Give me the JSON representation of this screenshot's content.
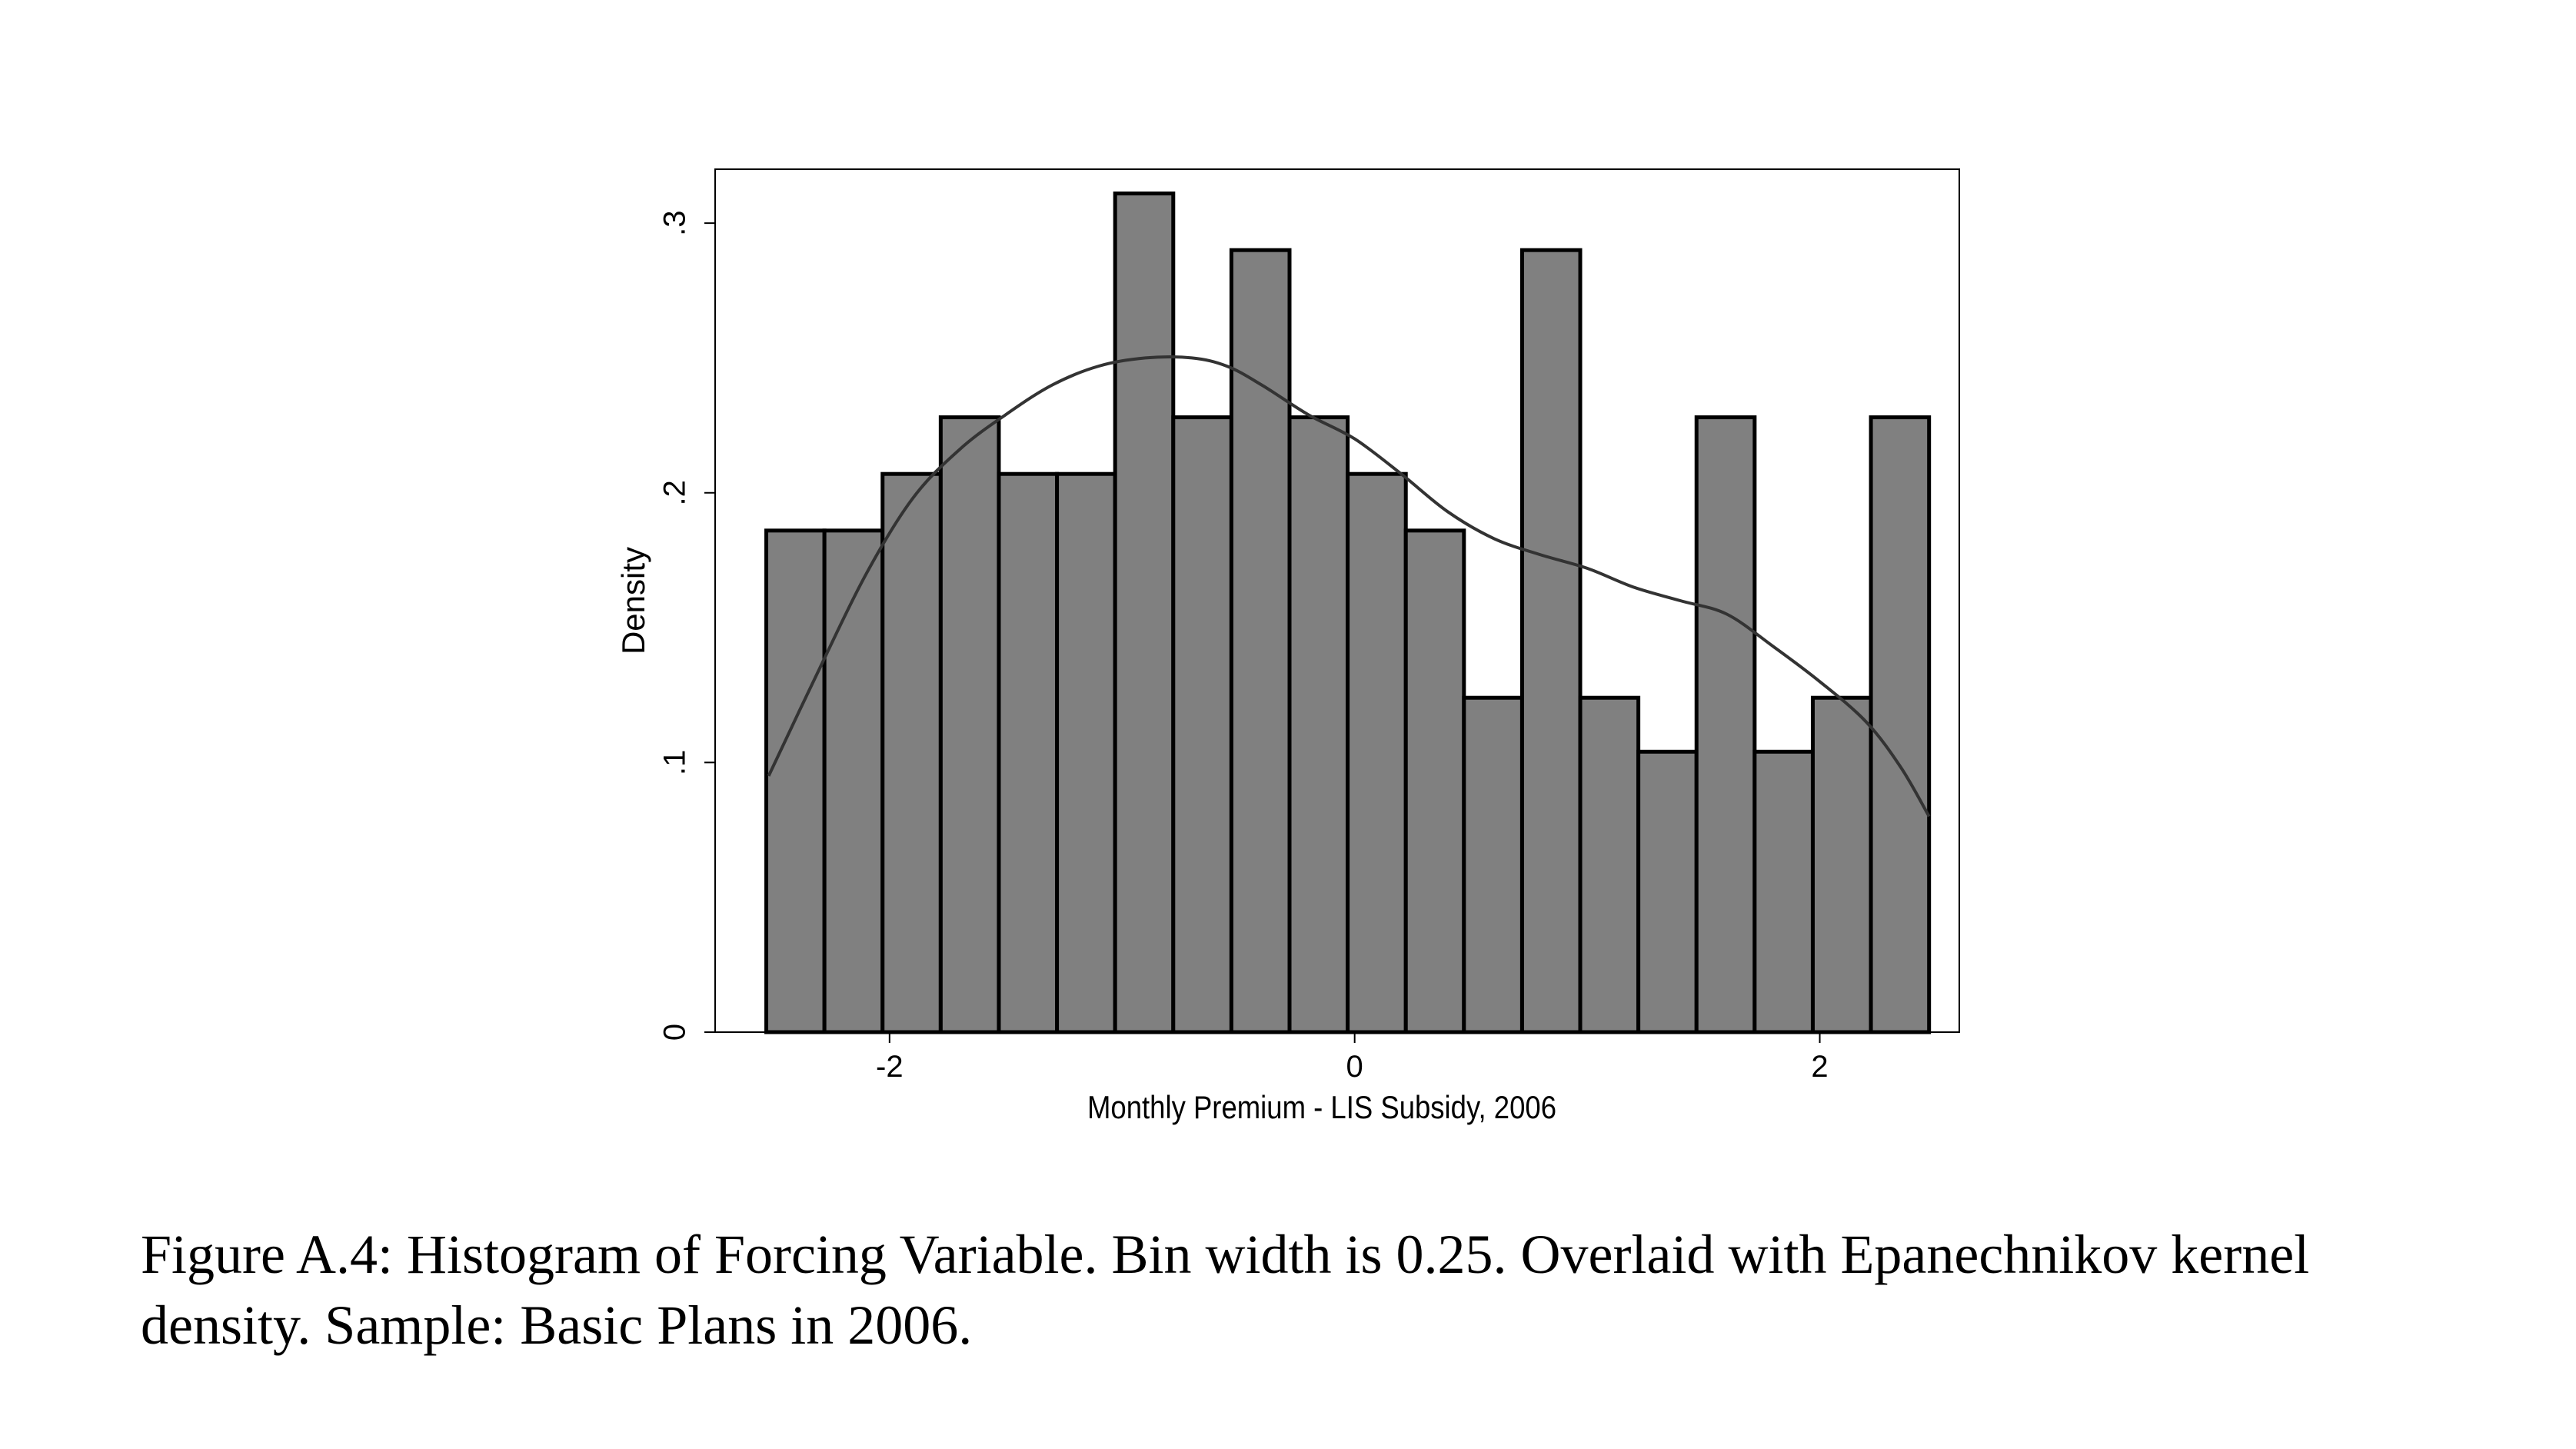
{
  "chart_data": {
    "type": "bar",
    "xlabel": "Monthly Premium - LIS Subsidy, 2006",
    "ylabel": "Density",
    "xlim": [
      -2.75,
      2.6
    ],
    "ylim": [
      0,
      0.32
    ],
    "x_ticks": [
      {
        "value": -2,
        "label": "-2"
      },
      {
        "value": 0,
        "label": "0"
      },
      {
        "value": 2,
        "label": "2"
      }
    ],
    "y_ticks": [
      {
        "value": 0,
        "label": "0"
      },
      {
        "value": 0.1,
        "label": ".1"
      },
      {
        "value": 0.2,
        "label": ".2"
      },
      {
        "value": 0.3,
        "label": ".3"
      }
    ],
    "bin_width": 0.25,
    "bins": [
      {
        "start": -2.53,
        "density": 0.186
      },
      {
        "start": -2.28,
        "density": 0.186
      },
      {
        "start": -2.03,
        "density": 0.207
      },
      {
        "start": -1.78,
        "density": 0.228
      },
      {
        "start": -1.53,
        "density": 0.207
      },
      {
        "start": -1.28,
        "density": 0.207
      },
      {
        "start": -1.03,
        "density": 0.311
      },
      {
        "start": -0.78,
        "density": 0.228
      },
      {
        "start": -0.53,
        "density": 0.29
      },
      {
        "start": -0.28,
        "density": 0.228
      },
      {
        "start": -0.03,
        "density": 0.207
      },
      {
        "start": 0.22,
        "density": 0.186
      },
      {
        "start": 0.47,
        "density": 0.124
      },
      {
        "start": 0.72,
        "density": 0.29
      },
      {
        "start": 0.97,
        "density": 0.124
      },
      {
        "start": 1.22,
        "density": 0.104
      },
      {
        "start": 1.47,
        "density": 0.228
      },
      {
        "start": 1.72,
        "density": 0.104
      },
      {
        "start": 1.97,
        "density": 0.124
      },
      {
        "start": 2.22,
        "density": 0.228
      }
    ],
    "kernel_density": {
      "x": [
        -2.52,
        -2.3,
        -2.1,
        -1.9,
        -1.7,
        -1.5,
        -1.3,
        -1.1,
        -0.9,
        -0.7,
        -0.55,
        -0.4,
        -0.2,
        0,
        0.2,
        0.4,
        0.6,
        0.8,
        1.0,
        1.2,
        1.4,
        1.6,
        1.8,
        2.0,
        2.2,
        2.35,
        2.47
      ],
      "y": [
        0.095,
        0.135,
        0.17,
        0.198,
        0.216,
        0.229,
        0.24,
        0.247,
        0.25,
        0.25,
        0.247,
        0.24,
        0.229,
        0.22,
        0.207,
        0.193,
        0.183,
        0.177,
        0.172,
        0.165,
        0.16,
        0.155,
        0.143,
        0.13,
        0.115,
        0.098,
        0.08
      ]
    }
  },
  "caption": {
    "text": "Figure A.4: Histogram of Forcing Variable. Bin width is 0.25. Overlaid with Epanechnikov kernel density. Sample: Basic Plans in 2006."
  },
  "colors": {
    "bar_fill": "#808080",
    "bar_stroke": "#000000",
    "density_line": "#333333",
    "frame": "#000000"
  }
}
